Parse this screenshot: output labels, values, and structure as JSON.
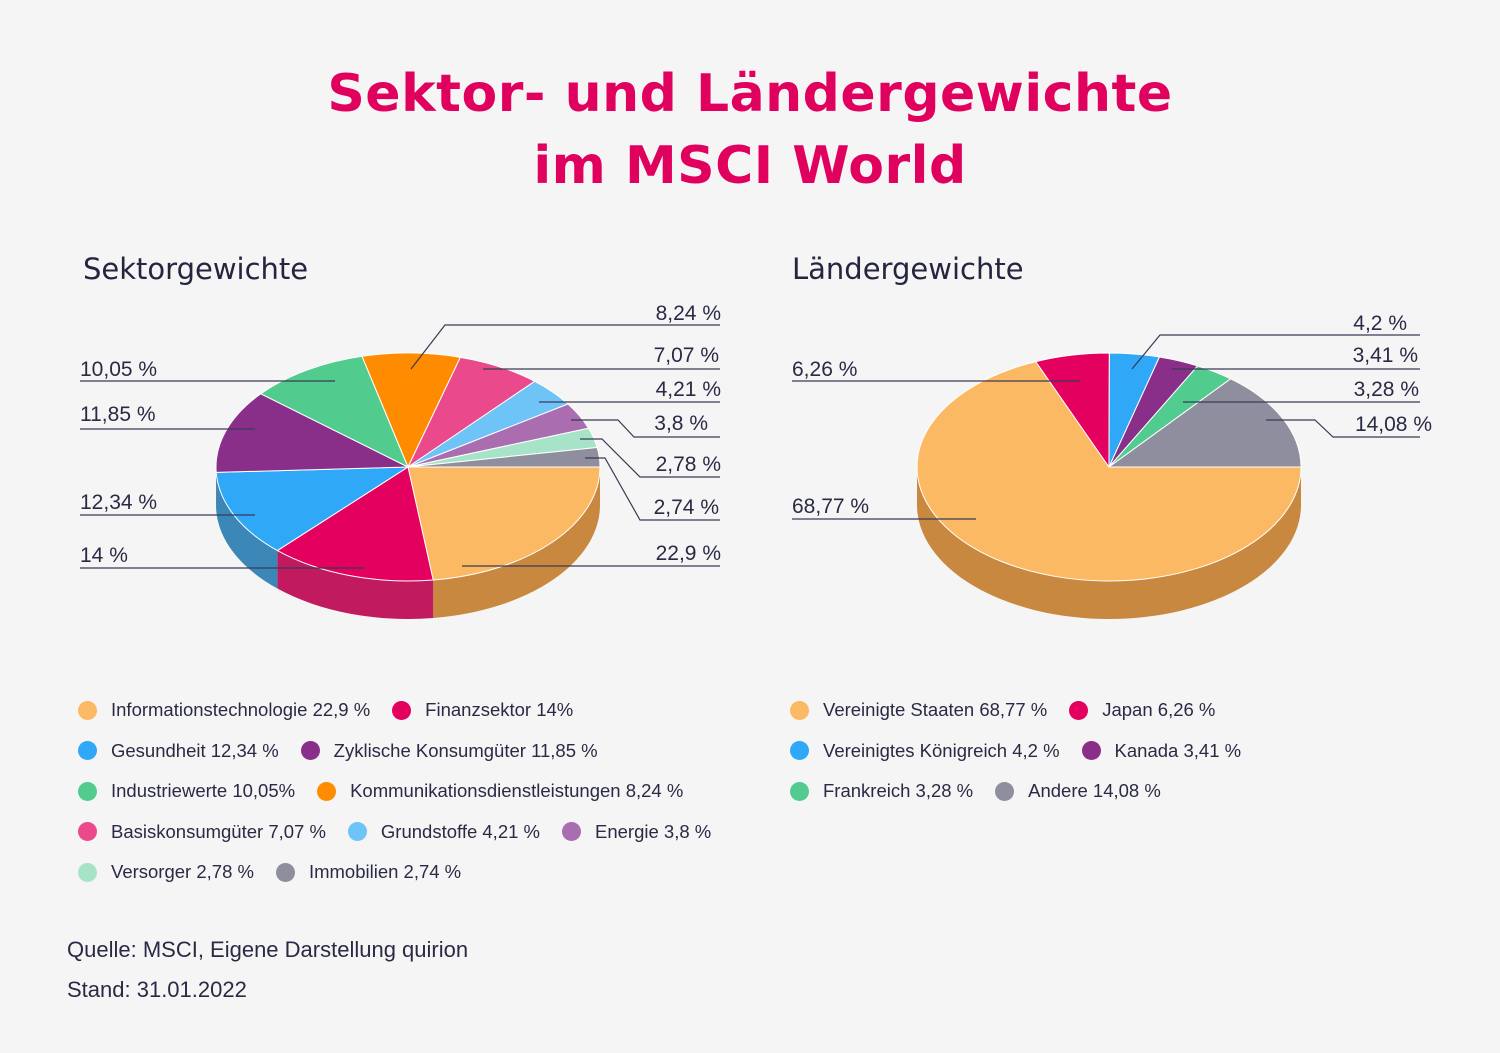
{
  "title_line1": "Sektor- und Ländergewichte",
  "title_line2": "im MSCI World",
  "source": "Quelle: MSCI, Eigene Darstellung quirion",
  "stand": "Stand: 31.01.2022",
  "chart_data": [
    {
      "type": "pie",
      "title": "Sektorgewichte",
      "unit": "%",
      "slices": [
        {
          "name": "Informationstechnologie",
          "value": 22.9,
          "label": "22,9 %",
          "legend": "Informationstechnologie 22,9 %",
          "color": "#fbb963",
          "side": "#c98840"
        },
        {
          "name": "Finanzsektor",
          "value": 14,
          "label": "14 %",
          "legend": "Finanzsektor 14%",
          "color": "#e3005f",
          "side": "#c21a5e"
        },
        {
          "name": "Gesundheit",
          "value": 12.34,
          "label": "12,34 %",
          "legend": "Gesundheit 12,34 %",
          "color": "#2ea8f7",
          "side": "#3b88b8"
        },
        {
          "name": "Zyklische Konsumgüter",
          "value": 11.85,
          "label": "11,85 %",
          "legend": "Zyklische Konsumgüter 11,85 %",
          "color": "#8a2f89",
          "side": "#6a2369"
        },
        {
          "name": "Industriewerte",
          "value": 10.05,
          "label": "10,05 %",
          "legend": "Industriewerte 10,05%",
          "color": "#52cc8e",
          "side": "#3c9e6c"
        },
        {
          "name": "Kommunikationsdienstleistungen",
          "value": 8.24,
          "label": "8,24 %",
          "legend": "Kommunikationsdienstleistungen 8,24 %",
          "color": "#ff8c00",
          "side": "#c76c00"
        },
        {
          "name": "Basiskonsumgüter",
          "value": 7.07,
          "label": "7,07 %",
          "legend": "Basiskonsumgüter 7,07 %",
          "color": "#ea4a8b",
          "side": "#b63a6c"
        },
        {
          "name": "Grundstoffe",
          "value": 4.21,
          "label": "4,21 %",
          "legend": "Grundstoffe 4,21 %",
          "color": "#6ec3f7",
          "side": "#4f96c0"
        },
        {
          "name": "Energie",
          "value": 3.8,
          "label": "3,8 %",
          "legend": "Energie 3,8 %",
          "color": "#a96db0",
          "side": "#825387"
        },
        {
          "name": "Versorger",
          "value": 2.78,
          "label": "2,78 %",
          "legend": "Versorger 2,78 %",
          "color": "#a7e4c7",
          "side": "#7fb39a"
        },
        {
          "name": "Immobilien",
          "value": 2.74,
          "label": "2,74 %",
          "legend": "Immobilien 2,74 %",
          "color": "#8e8e9e",
          "side": "#6d6d7b"
        }
      ]
    },
    {
      "type": "pie",
      "title": "Ländergewichte",
      "unit": "%",
      "slices": [
        {
          "name": "Vereinigte Staaten",
          "value": 68.77,
          "label": "68,77 %",
          "legend": "Vereinigte Staaten 68,77 %",
          "color": "#fbb963",
          "side": "#c98840"
        },
        {
          "name": "Japan",
          "value": 6.26,
          "label": "6,26 %",
          "legend": "Japan 6,26 %",
          "color": "#e3005f",
          "side": "#b3004b"
        },
        {
          "name": "Vereinigtes Königreich",
          "value": 4.2,
          "label": "4,2 %",
          "legend": "Vereinigtes Königreich 4,2 %",
          "color": "#2ea8f7",
          "side": "#2383c0"
        },
        {
          "name": "Kanada",
          "value": 3.41,
          "label": "3,41 %",
          "legend": "Kanada 3,41 %",
          "color": "#8a2f89",
          "side": "#6a2369"
        },
        {
          "name": "Frankreich",
          "value": 3.28,
          "label": "3,28 %",
          "legend": "Frankreich 3,28 %",
          "color": "#52cc8e",
          "side": "#3c9e6c"
        },
        {
          "name": "Andere",
          "value": 14.08,
          "label": "14,08 %",
          "legend": "Andere 14,08 %",
          "color": "#8e8e9e",
          "side": "#6d6d7b"
        }
      ]
    }
  ]
}
